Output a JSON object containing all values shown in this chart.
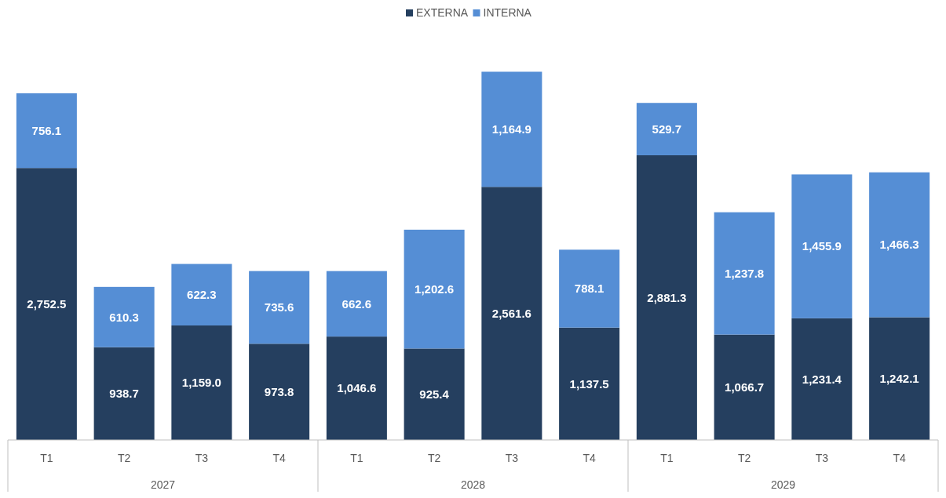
{
  "chart_data": {
    "type": "bar",
    "stacked": true,
    "legend": "top",
    "grid": false,
    "categories": [
      "T1",
      "T2",
      "T3",
      "T4",
      "T1",
      "T2",
      "T3",
      "T4",
      "T1",
      "T2",
      "T3",
      "T4"
    ],
    "series": [
      {
        "name": "EXTERNA",
        "color": "#253f5f",
        "values": [
          2752.5,
          938.7,
          1159.0,
          973.8,
          1046.6,
          925.4,
          2561.6,
          1137.5,
          2881.3,
          1066.7,
          1231.4,
          1242.1
        ],
        "value_labels": [
          "2,752.5",
          "938.7",
          "1,159.0",
          "973.8",
          "1,046.6",
          "925.4",
          "2,561.6",
          "1,137.5",
          "2,881.3",
          "1,066.7",
          "1,231.4",
          "1,242.1"
        ]
      },
      {
        "name": "INTERNA",
        "color": "#558ed5",
        "values": [
          756.1,
          610.3,
          622.3,
          735.6,
          662.6,
          1202.6,
          1164.9,
          788.1,
          529.7,
          1237.8,
          1455.9,
          1466.3
        ],
        "value_labels": [
          "756.1",
          "610.3",
          "622.3",
          "735.6",
          "662.6",
          "1,202.6",
          "1,164.9",
          "788.1",
          "529.7",
          "1,237.8",
          "1,455.9",
          "1,466.3"
        ]
      }
    ],
    "annotations": [
      "2027",
      "2028",
      "2029"
    ]
  }
}
